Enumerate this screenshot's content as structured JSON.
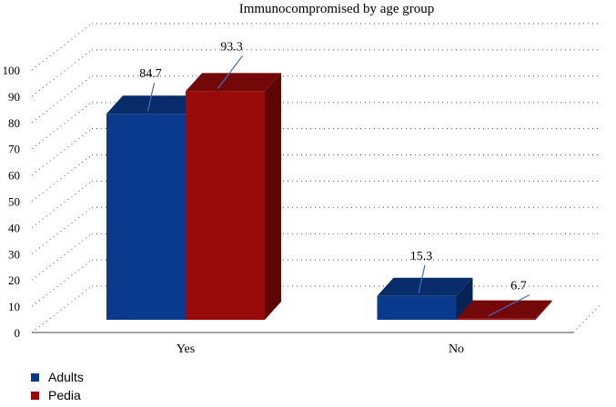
{
  "chart_data": {
    "type": "bar",
    "title": "Immunocompromised by age group",
    "categories": [
      "Yes",
      "No"
    ],
    "series": [
      {
        "name": "Adults",
        "values": [
          84.7,
          15.3
        ],
        "color": "#0a3a8c"
      },
      {
        "name": "Pedia",
        "values": [
          93.3,
          6.7
        ],
        "color": "#9a0a0a"
      }
    ],
    "y_ticks": [
      0,
      10,
      20,
      30,
      40,
      50,
      60,
      70,
      80,
      90,
      100
    ],
    "ylim": [
      0,
      100
    ],
    "grid": true,
    "legend_position": "bottom-left",
    "xlabel": "",
    "ylabel": ""
  }
}
